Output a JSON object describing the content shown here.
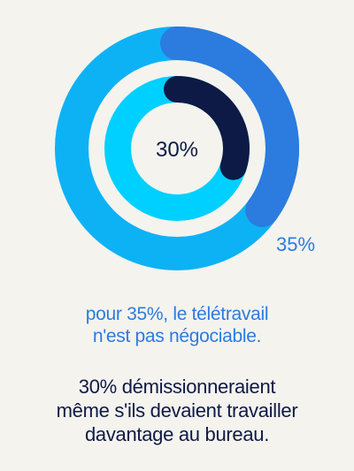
{
  "colors": {
    "background": "#F4F3EE",
    "outer_track": "#0DB2F5",
    "outer_value": "#2C7BDF",
    "inner_track": "#00D0FF",
    "inner_value": "#0E1A46",
    "caption_1_text": "#2C7BDF",
    "caption_2_text": "#0E1A46"
  },
  "chart_data": {
    "type": "donut",
    "rings": [
      {
        "ring": "outer",
        "value": 35,
        "label": "35%"
      },
      {
        "ring": "inner",
        "value": 30,
        "label": "30%"
      }
    ],
    "unit": "%",
    "max": 100
  },
  "captions": {
    "line_1": "pour 35%, le télétravail",
    "line_2": "n'est pas négociable.",
    "line_3": "30% démissionneraient",
    "line_4": "même s'ils devaient travailler",
    "line_5": "davantage au bureau."
  }
}
